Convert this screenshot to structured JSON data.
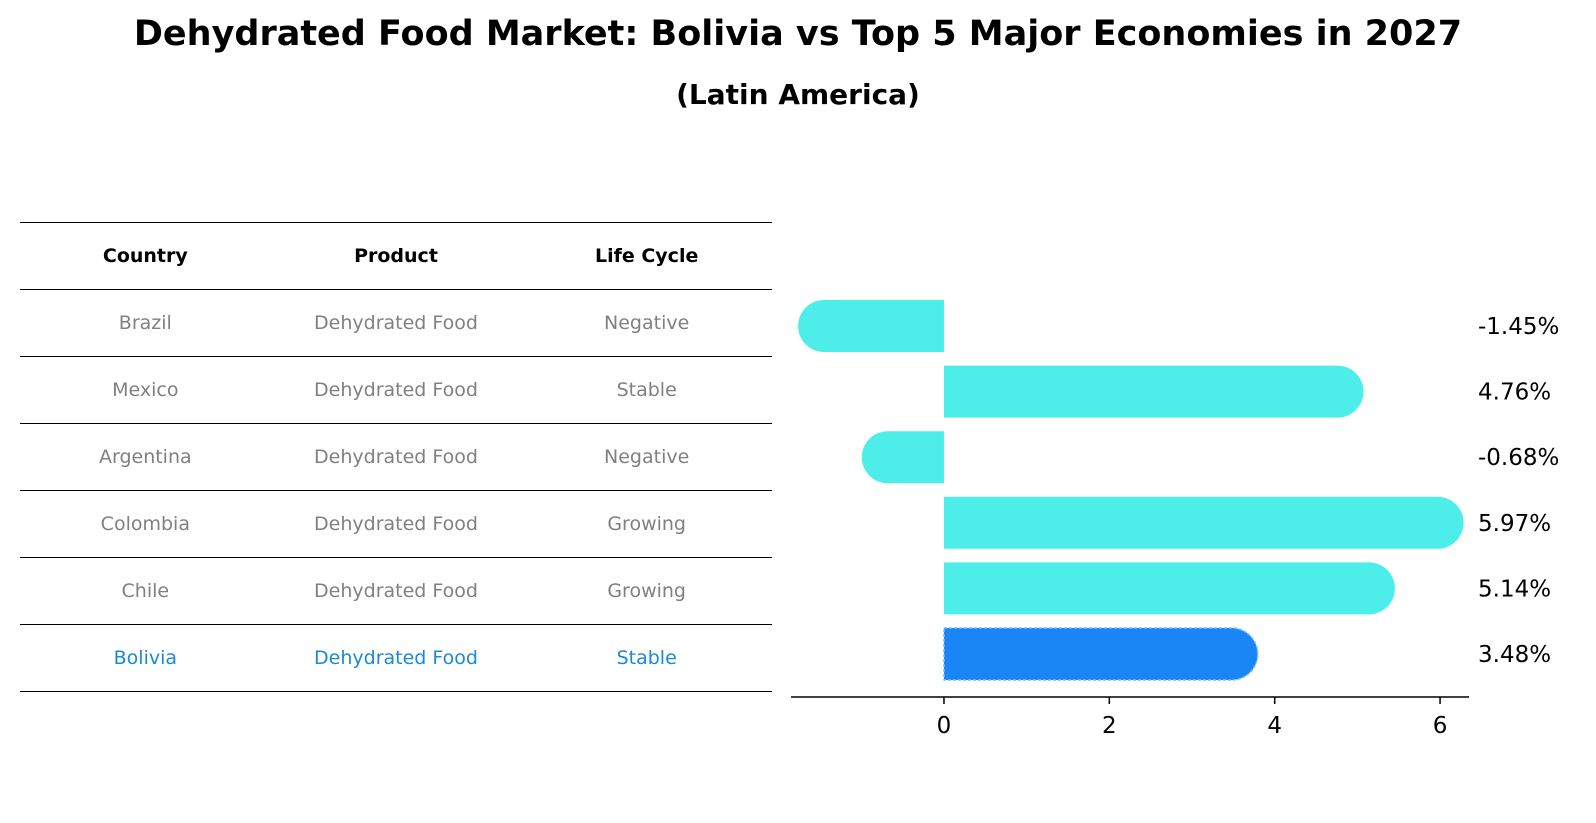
{
  "title": "Dehydrated Food Market: Bolivia vs Top 5 Major Economies in 2027",
  "subtitle": "(Latin America)",
  "table": {
    "headers": [
      "Country",
      "Product",
      "Life Cycle"
    ],
    "rows": [
      {
        "country": "Brazil",
        "product": "Dehydrated Food",
        "life_cycle": "Negative",
        "highlight": false
      },
      {
        "country": "Mexico",
        "product": "Dehydrated Food",
        "life_cycle": "Stable",
        "highlight": false
      },
      {
        "country": "Argentina",
        "product": "Dehydrated Food",
        "life_cycle": "Negative",
        "highlight": false
      },
      {
        "country": "Colombia",
        "product": "Dehydrated Food",
        "life_cycle": "Growing",
        "highlight": false
      },
      {
        "country": "Chile",
        "product": "Dehydrated Food",
        "life_cycle": "Growing",
        "highlight": false
      },
      {
        "country": "Bolivia",
        "product": "Dehydrated Food",
        "life_cycle": "Stable",
        "highlight": true
      }
    ]
  },
  "colors": {
    "bar": "#4deee9",
    "highlight_bar": "#1a86f5",
    "highlight_text": "#1a8ad4",
    "muted_text": "#808080"
  },
  "chart_data": {
    "type": "bar",
    "orientation": "horizontal",
    "categories": [
      "Brazil",
      "Mexico",
      "Argentina",
      "Colombia",
      "Chile",
      "Bolivia"
    ],
    "values": [
      -1.45,
      4.76,
      -0.68,
      5.97,
      5.14,
      3.48
    ],
    "value_labels": [
      "-1.45%",
      "4.76%",
      "-0.68%",
      "5.97%",
      "5.14%",
      "3.48%"
    ],
    "highlight_index": 5,
    "xlim": [
      -1.85,
      6.35
    ],
    "xticks": [
      0,
      2,
      4,
      6
    ],
    "grid": false,
    "legend": "none"
  }
}
